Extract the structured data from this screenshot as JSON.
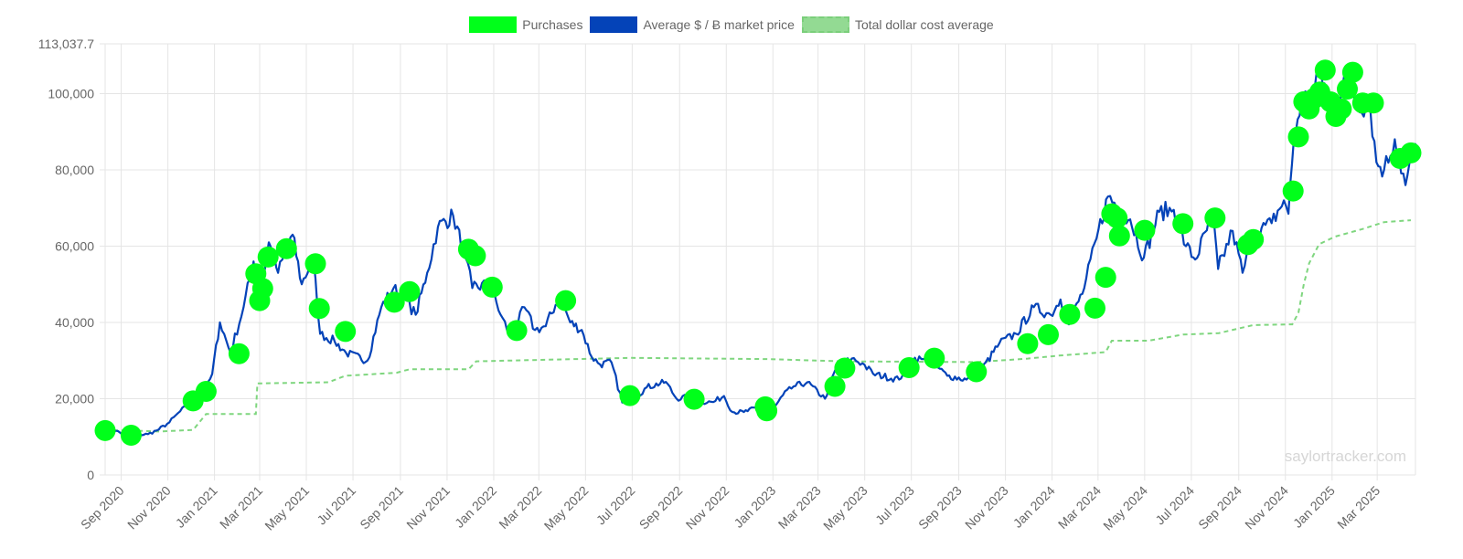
{
  "legend": {
    "purchases": "Purchases",
    "market": "Average $ / Ƀ market price",
    "dca": "Total dollar cost average"
  },
  "watermark": "saylortracker.com",
  "colors": {
    "purchases": "#00ff1a",
    "market": "#0443b8",
    "dca": "#7fd67f",
    "grid": "#e5e5e5"
  },
  "chart_data": {
    "type": "line",
    "y_ticks": [
      "0",
      "20,000",
      "40,000",
      "60,000",
      "80,000",
      "100,000",
      "113,037.7"
    ],
    "y_tick_values": [
      0,
      20000,
      40000,
      60000,
      80000,
      100000,
      113037.7
    ],
    "ylim": [
      0,
      113037.7
    ],
    "xlim": [
      "2020-08-11",
      "2025-04-20"
    ],
    "x_ticks": [
      {
        "label": "Sep 2020",
        "date": "2020-09-01"
      },
      {
        "label": "Nov 2020",
        "date": "2020-11-01"
      },
      {
        "label": "Jan 2021",
        "date": "2021-01-01"
      },
      {
        "label": "Mar 2021",
        "date": "2021-03-01"
      },
      {
        "label": "May 2021",
        "date": "2021-05-01"
      },
      {
        "label": "Jul 2021",
        "date": "2021-07-01"
      },
      {
        "label": "Sep 2021",
        "date": "2021-09-01"
      },
      {
        "label": "Nov 2021",
        "date": "2021-11-01"
      },
      {
        "label": "Jan 2022",
        "date": "2022-01-01"
      },
      {
        "label": "Mar 2022",
        "date": "2022-03-01"
      },
      {
        "label": "May 2022",
        "date": "2022-05-01"
      },
      {
        "label": "Jul 2022",
        "date": "2022-07-01"
      },
      {
        "label": "Sep 2022",
        "date": "2022-09-01"
      },
      {
        "label": "Nov 2022",
        "date": "2022-11-01"
      },
      {
        "label": "Jan 2023",
        "date": "2023-01-01"
      },
      {
        "label": "Mar 2023",
        "date": "2023-03-01"
      },
      {
        "label": "May 2023",
        "date": "2023-05-01"
      },
      {
        "label": "Jul 2023",
        "date": "2023-07-01"
      },
      {
        "label": "Sep 2023",
        "date": "2023-09-01"
      },
      {
        "label": "Nov 2023",
        "date": "2023-11-01"
      },
      {
        "label": "Jan 2024",
        "date": "2024-01-01"
      },
      {
        "label": "Mar 2024",
        "date": "2024-03-01"
      },
      {
        "label": "May 2024",
        "date": "2024-05-01"
      },
      {
        "label": "Jul 2024",
        "date": "2024-07-01"
      },
      {
        "label": "Sep 2024",
        "date": "2024-09-01"
      },
      {
        "label": "Nov 2024",
        "date": "2024-11-01"
      },
      {
        "label": "Jan 2025",
        "date": "2025-01-01"
      },
      {
        "label": "Mar 2025",
        "date": "2025-03-01"
      }
    ],
    "grid": true,
    "legend_position": "top",
    "series": [
      {
        "name": "Average $ / Ƀ market price",
        "points": [
          [
            "2020-08-11",
            11500
          ],
          [
            "2020-08-25",
            11600
          ],
          [
            "2020-09-08",
            10200
          ],
          [
            "2020-09-22",
            10500
          ],
          [
            "2020-10-06",
            10700
          ],
          [
            "2020-10-20",
            11900
          ],
          [
            "2020-11-03",
            13800
          ],
          [
            "2020-11-17",
            16700
          ],
          [
            "2020-12-01",
            18800
          ],
          [
            "2020-12-15",
            19400
          ],
          [
            "2020-12-29",
            26500
          ],
          [
            "2021-01-08",
            40000
          ],
          [
            "2021-01-22",
            32000
          ],
          [
            "2021-02-08",
            44000
          ],
          [
            "2021-02-21",
            56000
          ],
          [
            "2021-03-01",
            46000
          ],
          [
            "2021-03-13",
            61000
          ],
          [
            "2021-03-25",
            53000
          ],
          [
            "2021-04-13",
            63000
          ],
          [
            "2021-04-25",
            50000
          ],
          [
            "2021-05-10",
            57000
          ],
          [
            "2021-05-19",
            37000
          ],
          [
            "2021-06-07",
            35000
          ],
          [
            "2021-06-22",
            32000
          ],
          [
            "2021-07-20",
            30000
          ],
          [
            "2021-08-07",
            44000
          ],
          [
            "2021-08-23",
            49000
          ],
          [
            "2021-09-07",
            46000
          ],
          [
            "2021-09-21",
            42000
          ],
          [
            "2021-10-06",
            53000
          ],
          [
            "2021-10-20",
            65000
          ],
          [
            "2021-11-09",
            68000
          ],
          [
            "2021-11-25",
            57000
          ],
          [
            "2021-12-04",
            49000
          ],
          [
            "2021-12-27",
            50000
          ],
          [
            "2022-01-10",
            42000
          ],
          [
            "2022-01-24",
            36000
          ],
          [
            "2022-02-10",
            44000
          ],
          [
            "2022-02-24",
            38000
          ],
          [
            "2022-03-10",
            39000
          ],
          [
            "2022-03-28",
            47000
          ],
          [
            "2022-04-11",
            40000
          ],
          [
            "2022-04-26",
            38000
          ],
          [
            "2022-05-09",
            31000
          ],
          [
            "2022-05-20",
            29000
          ],
          [
            "2022-06-04",
            29500
          ],
          [
            "2022-06-18",
            19000
          ],
          [
            "2022-07-01",
            19500
          ],
          [
            "2022-07-20",
            23000
          ],
          [
            "2022-08-14",
            24400
          ],
          [
            "2022-08-28",
            20000
          ],
          [
            "2022-09-13",
            20500
          ],
          [
            "2022-09-28",
            19200
          ],
          [
            "2022-10-15",
            19100
          ],
          [
            "2022-10-29",
            20700
          ],
          [
            "2022-11-09",
            16500
          ],
          [
            "2022-11-24",
            16500
          ],
          [
            "2022-12-14",
            17800
          ],
          [
            "2022-12-31",
            16600
          ],
          [
            "2023-01-14",
            20900
          ],
          [
            "2023-01-28",
            23200
          ],
          [
            "2023-02-15",
            24300
          ],
          [
            "2023-03-10",
            20000
          ],
          [
            "2023-03-24",
            27800
          ],
          [
            "2023-04-14",
            30500
          ],
          [
            "2023-04-28",
            29300
          ],
          [
            "2023-05-12",
            26500
          ],
          [
            "2023-06-15",
            25000
          ],
          [
            "2023-06-30",
            30500
          ],
          [
            "2023-07-14",
            30400
          ],
          [
            "2023-07-28",
            29400
          ],
          [
            "2023-08-17",
            26000
          ],
          [
            "2023-09-11",
            25000
          ],
          [
            "2023-09-29",
            27000
          ],
          [
            "2023-10-24",
            34500
          ],
          [
            "2023-11-15",
            37000
          ],
          [
            "2023-12-08",
            44000
          ],
          [
            "2023-12-30",
            42000
          ],
          [
            "2024-01-12",
            46000
          ],
          [
            "2024-01-23",
            39500
          ],
          [
            "2024-02-12",
            49000
          ],
          [
            "2024-02-28",
            62000
          ],
          [
            "2024-03-14",
            73000
          ],
          [
            "2024-03-28",
            70000
          ],
          [
            "2024-04-12",
            67000
          ],
          [
            "2024-04-30",
            57000
          ],
          [
            "2024-05-20",
            69000
          ],
          [
            "2024-06-08",
            69500
          ],
          [
            "2024-06-24",
            60000
          ],
          [
            "2024-07-06",
            56500
          ],
          [
            "2024-07-29",
            68000
          ],
          [
            "2024-08-05",
            54000
          ],
          [
            "2024-08-24",
            64000
          ],
          [
            "2024-09-06",
            53000
          ],
          [
            "2024-09-20",
            63000
          ],
          [
            "2024-10-14",
            66000
          ],
          [
            "2024-10-30",
            72000
          ],
          [
            "2024-11-05",
            68500
          ],
          [
            "2024-11-12",
            88000
          ],
          [
            "2024-11-22",
            98500
          ],
          [
            "2024-12-05",
            99000
          ],
          [
            "2024-12-17",
            106000
          ],
          [
            "2025-01-01",
            94000
          ],
          [
            "2025-01-20",
            104000
          ],
          [
            "2025-02-03",
            98000
          ],
          [
            "2025-02-20",
            96000
          ],
          [
            "2025-02-28",
            82000
          ],
          [
            "2025-03-10",
            80000
          ],
          [
            "2025-03-24",
            88000
          ],
          [
            "2025-04-07",
            76000
          ],
          [
            "2025-04-20",
            87000
          ]
        ]
      },
      {
        "name": "Total dollar cost average",
        "points": [
          [
            "2020-08-11",
            11654
          ],
          [
            "2020-09-14",
            11654
          ],
          [
            "2020-10-20",
            11400
          ],
          [
            "2020-12-04",
            11800
          ],
          [
            "2020-12-21",
            16000
          ],
          [
            "2021-02-24",
            16000
          ],
          [
            "2021-02-26",
            24000
          ],
          [
            "2021-05-30",
            24300
          ],
          [
            "2021-06-21",
            26000
          ],
          [
            "2021-08-27",
            26800
          ],
          [
            "2021-09-13",
            27700
          ],
          [
            "2021-11-29",
            27700
          ],
          [
            "2021-12-09",
            29800
          ],
          [
            "2022-02-15",
            30100
          ],
          [
            "2022-06-28",
            30700
          ],
          [
            "2022-12-22",
            30400
          ],
          [
            "2023-04-05",
            29800
          ],
          [
            "2023-09-24",
            29600
          ],
          [
            "2023-11-30",
            30500
          ],
          [
            "2024-01-10",
            31300
          ],
          [
            "2024-03-11",
            32200
          ],
          [
            "2024-03-19",
            35200
          ],
          [
            "2024-05-06",
            35200
          ],
          [
            "2024-06-20",
            36800
          ],
          [
            "2024-08-06",
            37200
          ],
          [
            "2024-09-20",
            39300
          ],
          [
            "2024-11-10",
            39500
          ],
          [
            "2024-11-18",
            42500
          ],
          [
            "2024-11-25",
            50000
          ],
          [
            "2024-12-02",
            55500
          ],
          [
            "2024-12-15",
            60500
          ],
          [
            "2025-01-05",
            62500
          ],
          [
            "2025-02-10",
            64500
          ],
          [
            "2025-03-10",
            66300
          ],
          [
            "2025-04-14",
            66800
          ]
        ]
      },
      {
        "name": "Purchases",
        "points": [
          [
            "2020-08-11",
            11650
          ],
          [
            "2020-09-14",
            10419
          ],
          [
            "2020-12-04",
            19427
          ],
          [
            "2020-12-21",
            21925
          ],
          [
            "2021-02-02",
            31808
          ],
          [
            "2021-02-24",
            52765
          ],
          [
            "2021-03-01",
            45710
          ],
          [
            "2021-03-05",
            48888
          ],
          [
            "2021-03-12",
            57146
          ],
          [
            "2021-04-05",
            59339
          ],
          [
            "2021-05-13",
            55387
          ],
          [
            "2021-05-18",
            43663
          ],
          [
            "2021-06-21",
            37617
          ],
          [
            "2021-08-24",
            45294
          ],
          [
            "2021-09-13",
            48099
          ],
          [
            "2021-11-29",
            59187
          ],
          [
            "2021-12-08",
            57477
          ],
          [
            "2021-12-30",
            49229
          ],
          [
            "2022-01-31",
            37865
          ],
          [
            "2022-04-05",
            45714
          ],
          [
            "2022-06-28",
            20817
          ],
          [
            "2022-09-20",
            19851
          ],
          [
            "2022-12-22",
            17871
          ],
          [
            "2022-12-24",
            16845
          ],
          [
            "2023-03-23",
            23238
          ],
          [
            "2023-04-05",
            28016
          ],
          [
            "2023-06-28",
            28136
          ],
          [
            "2023-07-31",
            30637
          ],
          [
            "2023-09-24",
            27053
          ],
          [
            "2023-11-30",
            34444
          ],
          [
            "2023-12-27",
            36785
          ],
          [
            "2024-01-24",
            42110
          ],
          [
            "2024-02-26",
            43732
          ],
          [
            "2024-03-11",
            51813
          ],
          [
            "2024-03-19",
            68477
          ],
          [
            "2024-03-26",
            67382
          ],
          [
            "2024-03-29",
            62691
          ],
          [
            "2024-05-01",
            64161
          ],
          [
            "2024-06-20",
            65883
          ],
          [
            "2024-08-01",
            67382
          ],
          [
            "2024-09-13",
            60408
          ],
          [
            "2024-09-20",
            61750
          ],
          [
            "2024-11-11",
            74463
          ],
          [
            "2024-11-18",
            88627
          ],
          [
            "2024-11-25",
            97862
          ],
          [
            "2024-12-02",
            95976
          ],
          [
            "2024-12-09",
            98783
          ],
          [
            "2024-12-16",
            100386
          ],
          [
            "2024-12-23",
            106141
          ],
          [
            "2024-12-30",
            97837
          ],
          [
            "2025-01-06",
            94004
          ],
          [
            "2025-01-13",
            95972
          ],
          [
            "2025-01-21",
            101191
          ],
          [
            "2025-01-28",
            105596
          ],
          [
            "2025-02-10",
            97514
          ],
          [
            "2025-02-24",
            97514
          ],
          [
            "2025-03-31",
            82981
          ],
          [
            "2025-04-14",
            84450
          ]
        ]
      }
    ]
  }
}
